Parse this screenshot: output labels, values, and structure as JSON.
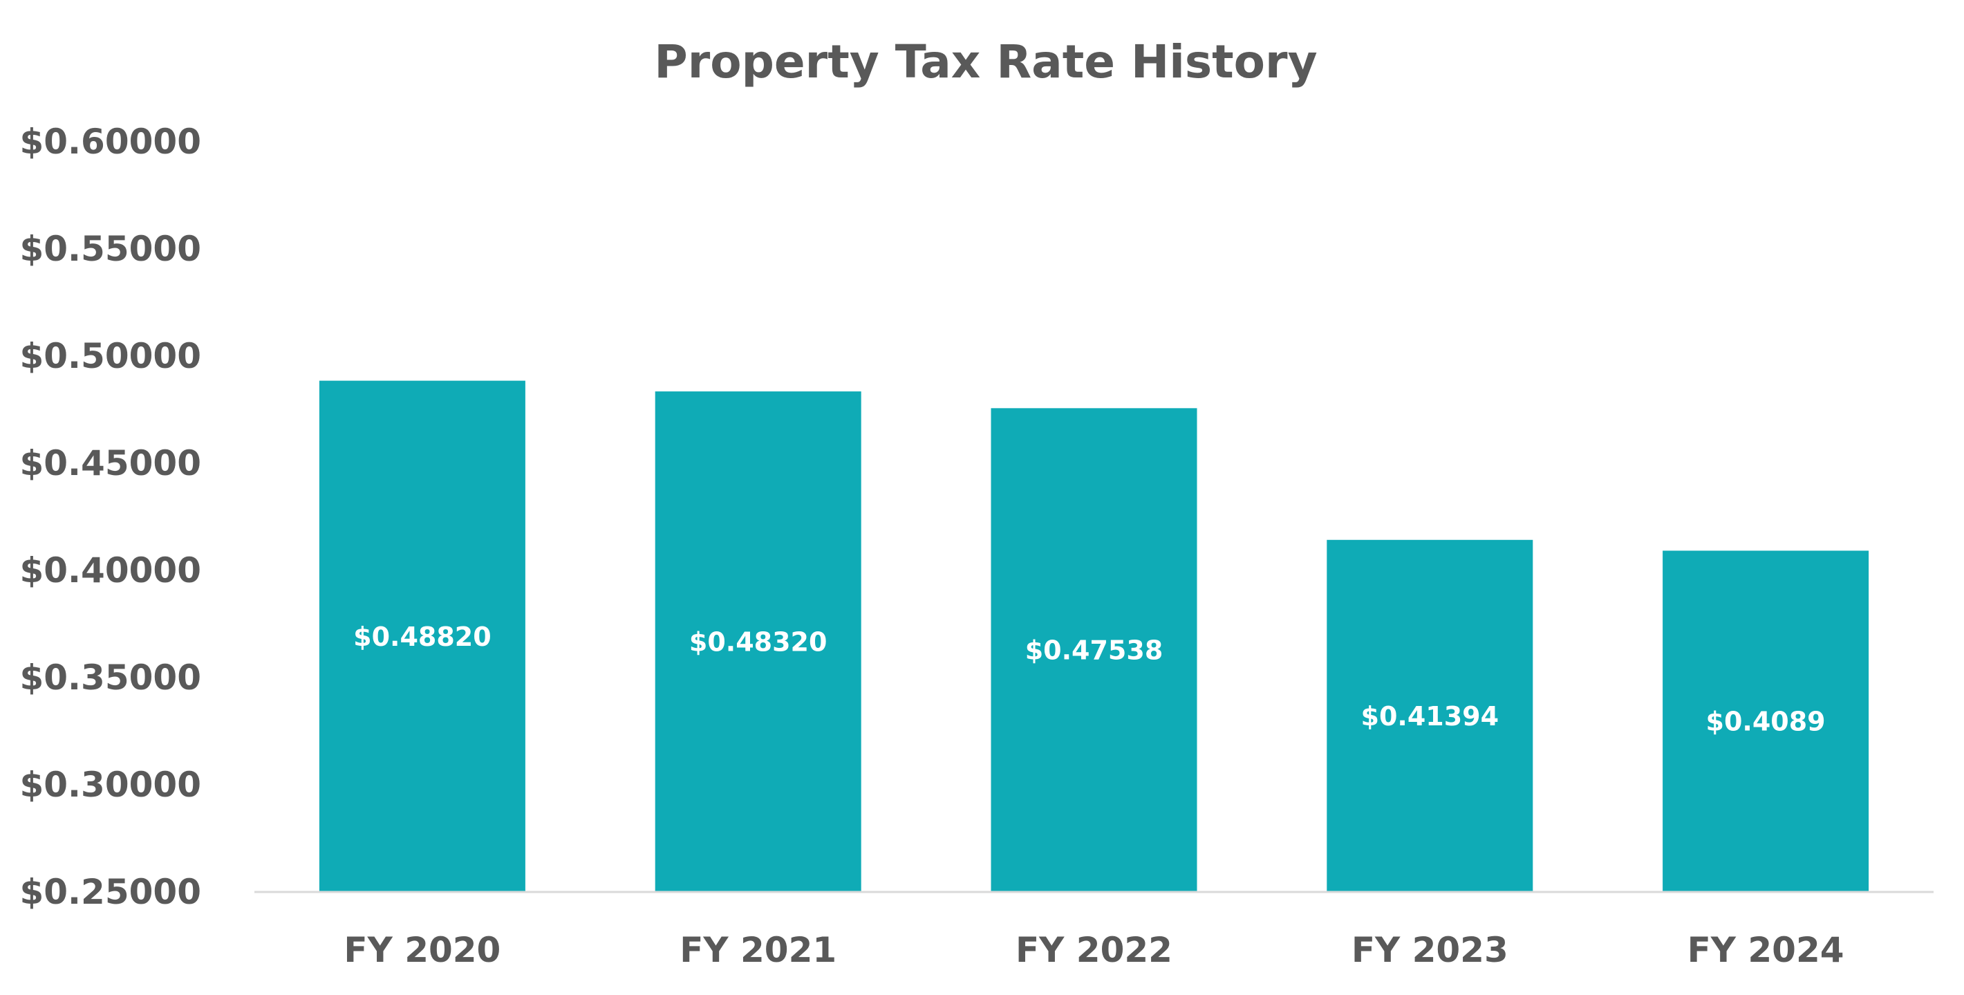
{
  "chart_data": {
    "type": "bar",
    "title": "Property Tax Rate History",
    "xlabel": "",
    "ylabel": "",
    "categories": [
      "FY 2020",
      "FY 2021",
      "FY 2022",
      "FY 2023",
      "FY 2024"
    ],
    "values": [
      0.4882,
      0.4832,
      0.47538,
      0.41394,
      0.4089
    ],
    "data_labels": [
      "$0.48820",
      "$0.48320",
      "$0.47538",
      "$0.41394",
      "$0.4089"
    ],
    "ylim": [
      0.25,
      0.6
    ],
    "yticks": [
      0.25,
      0.3,
      0.35,
      0.4,
      0.45,
      0.5,
      0.55,
      0.6
    ],
    "ytick_labels": [
      "$0.25000",
      "$0.30000",
      "$0.35000",
      "$0.40000",
      "$0.45000",
      "$0.50000",
      "$0.55000",
      "$0.60000"
    ],
    "grid": false,
    "legend": "none",
    "colors": {
      "bar": "#0FABB6",
      "text": "#595959",
      "axis": "#D9D9D9",
      "data_label": "#FFFFFF"
    }
  }
}
